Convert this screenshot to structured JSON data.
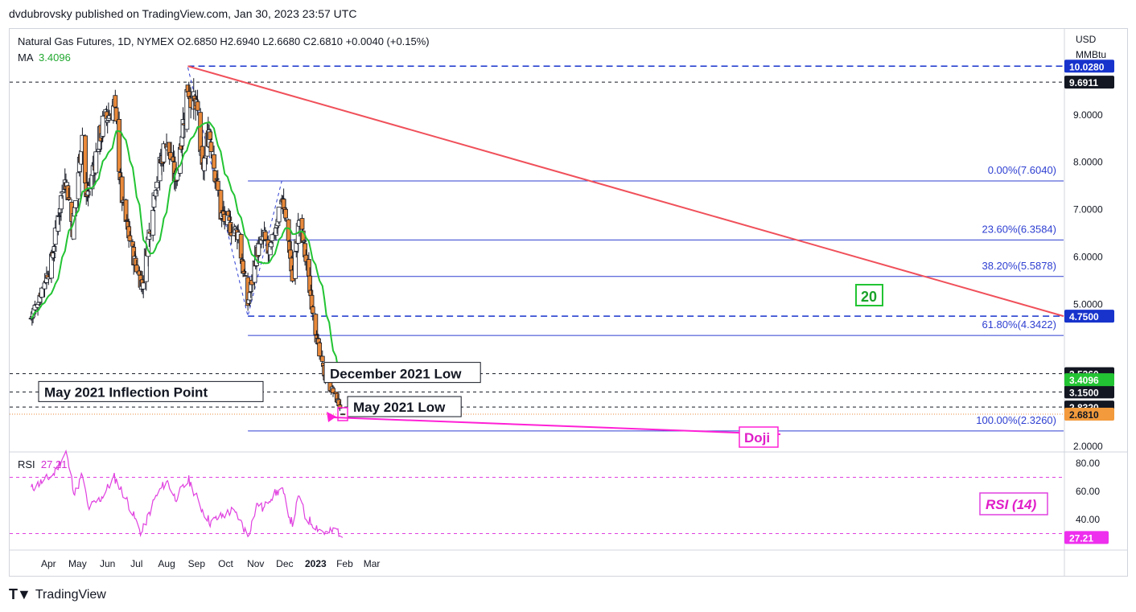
{
  "header": {
    "publisher_line": "dvdubrovsky published on TradingView.com, Jan 30, 2023 23:57 UTC"
  },
  "legend": {
    "symbol_line": "Natural Gas Futures, 1D, NYMEX  O2.6850  H2.6940  L2.6680  C2.6810  +0.0040 (+0.15%)",
    "ma_label": "MA",
    "ma_value": "3.4096",
    "rsi_label": "RSI",
    "rsi_value": "27.21"
  },
  "footer": {
    "brand": "TradingView"
  },
  "colors": {
    "candle_up": "#ffffff",
    "candle_down": "#e8893a",
    "candle_border": "#131722",
    "ma": "#22c433",
    "trendline": "#f0505a",
    "fib": "#2e3fd1",
    "dashed_blue": "#1733cc",
    "rsi": "#e040e0",
    "doji": "#ff20d6"
  },
  "chart_data": [
    {
      "type": "candlestick",
      "title": "Natural Gas Futures, 1D, NYMEX",
      "currency": "USD",
      "unit": "MMBtu",
      "y_axis_ticks": [
        "9.0000",
        "8.0000",
        "7.0000",
        "6.0000",
        "5.0000",
        "2.0000"
      ],
      "ylim": [
        2.0,
        10.0
      ],
      "x_axis_labels": [
        "Apr",
        "May",
        "Jun",
        "Jul",
        "Aug",
        "Sep",
        "Oct",
        "Nov",
        "Dec",
        "2023",
        "Feb",
        "Mar"
      ],
      "moving_average": {
        "name": "MA",
        "period_label": "20",
        "last": 3.4096
      },
      "anchors": [
        {
          "date": "Mar 14",
          "value": 4.7
        },
        {
          "date": "Apr 04",
          "value": 5.9
        },
        {
          "date": "Apr 18",
          "value": 7.8
        },
        {
          "date": "Apr 26",
          "value": 6.6
        },
        {
          "date": "May 06",
          "value": 8.6
        },
        {
          "date": "May 10",
          "value": 7.2
        },
        {
          "date": "May 27",
          "value": 8.8
        },
        {
          "date": "Jun 08",
          "value": 9.2
        },
        {
          "date": "Jun 17",
          "value": 7.0
        },
        {
          "date": "Jun 29",
          "value": 5.9
        },
        {
          "date": "Jul 07",
          "value": 5.4
        },
        {
          "date": "Jul 20",
          "value": 7.5
        },
        {
          "date": "Aug 01",
          "value": 8.5
        },
        {
          "date": "Aug 10",
          "value": 7.6
        },
        {
          "date": "Aug 23",
          "value": 9.6
        },
        {
          "date": "Sep 02",
          "value": 9.0
        },
        {
          "date": "Sep 07",
          "value": 7.8
        },
        {
          "date": "Sep 14",
          "value": 8.7
        },
        {
          "date": "Sep 26",
          "value": 6.9
        },
        {
          "date": "Oct 07",
          "value": 6.6
        },
        {
          "date": "Oct 14",
          "value": 6.5
        },
        {
          "date": "Oct 24",
          "value": 5.0
        },
        {
          "date": "Nov 02",
          "value": 6.1
        },
        {
          "date": "Nov 10",
          "value": 6.4
        },
        {
          "date": "Nov 15",
          "value": 6.0
        },
        {
          "date": "Nov 28",
          "value": 7.3
        },
        {
          "date": "Dec 06",
          "value": 6.2
        },
        {
          "date": "Dec 09",
          "value": 5.5
        },
        {
          "date": "Dec 16",
          "value": 6.8
        },
        {
          "date": "Dec 21",
          "value": 6.2
        },
        {
          "date": "Jan 06",
          "value": 3.9
        },
        {
          "date": "Jan 13",
          "value": 3.4
        },
        {
          "date": "Jan 24",
          "value": 3.0
        },
        {
          "date": "Jan 30",
          "value": 2.681
        }
      ],
      "horizontal_levels": [
        {
          "value": 9.6911,
          "label": "9.6911",
          "style": "dashed-black"
        },
        {
          "value": 10.028,
          "label": "10.0280",
          "style": "dashed-blue"
        },
        {
          "value": 4.75,
          "label": "4.7500",
          "style": "dashed-blue"
        },
        {
          "value": 3.536,
          "label": "3.5360",
          "style": "dashed-black",
          "annotation": "December 2021 Low"
        },
        {
          "value": 3.15,
          "label": "3.1500",
          "style": "dashed-black",
          "annotation": "May 2021 Inflection Point"
        },
        {
          "value": 2.832,
          "label": "2.8320",
          "style": "dashed-black",
          "annotation": "May 2021 Low"
        }
      ],
      "price_badges": [
        {
          "value": 3.4096,
          "label": "3.4096",
          "kind": "ma"
        },
        {
          "value": 2.681,
          "label": "2.6810",
          "kind": "last"
        }
      ],
      "fibonacci": [
        {
          "ratio": "0.00%",
          "value": 7.604,
          "label": "0.00%(7.6040)"
        },
        {
          "ratio": "23.60%",
          "value": 6.3584,
          "label": "23.60%(6.3584)"
        },
        {
          "ratio": "38.20%",
          "value": 5.5878,
          "label": "38.20%(5.5878)"
        },
        {
          "ratio": "61.80%",
          "value": 4.3422,
          "label": "61.80%(4.3422)"
        },
        {
          "ratio": "100.00%",
          "value": 2.326,
          "label": "100.00%(2.3260)"
        }
      ],
      "trendline": {
        "from": {
          "date": "Aug 23",
          "value": 10.028
        },
        "to": {
          "date": "Feb 20",
          "value": 4.75
        }
      },
      "annotations": [
        {
          "text": "20",
          "kind": "ma-period"
        },
        {
          "text": "Doji",
          "kind": "pattern",
          "date": "Jan 30",
          "value": 2.681
        }
      ]
    },
    {
      "type": "line",
      "title": "RSI",
      "indicator_label": "RSI (14)",
      "y_axis_ticks": [
        "80.00",
        "60.00",
        "40.00"
      ],
      "ylim": [
        20,
        92
      ],
      "levels": [
        70,
        30
      ],
      "last": 27.21,
      "anchors": [
        {
          "date": "Mar 14",
          "value": 62
        },
        {
          "date": "Apr 06",
          "value": 72
        },
        {
          "date": "Apr 19",
          "value": 88
        },
        {
          "date": "Apr 28",
          "value": 58
        },
        {
          "date": "May 06",
          "value": 72
        },
        {
          "date": "May 12",
          "value": 48
        },
        {
          "date": "May 25",
          "value": 55
        },
        {
          "date": "Jun 08",
          "value": 70
        },
        {
          "date": "Jun 20",
          "value": 55
        },
        {
          "date": "Jul 06",
          "value": 30
        },
        {
          "date": "Jul 20",
          "value": 55
        },
        {
          "date": "Aug 01",
          "value": 68
        },
        {
          "date": "Aug 10",
          "value": 55
        },
        {
          "date": "Aug 24",
          "value": 68
        },
        {
          "date": "Sep 06",
          "value": 48
        },
        {
          "date": "Sep 15",
          "value": 38
        },
        {
          "date": "Sep 26",
          "value": 42
        },
        {
          "date": "Oct 07",
          "value": 46
        },
        {
          "date": "Oct 14",
          "value": 42
        },
        {
          "date": "Oct 24",
          "value": 28
        },
        {
          "date": "Nov 03",
          "value": 52
        },
        {
          "date": "Nov 09",
          "value": 47
        },
        {
          "date": "Nov 15",
          "value": 55
        },
        {
          "date": "Nov 28",
          "value": 62
        },
        {
          "date": "Dec 07",
          "value": 40
        },
        {
          "date": "Dec 09",
          "value": 37
        },
        {
          "date": "Dec 16",
          "value": 58
        },
        {
          "date": "Dec 22",
          "value": 42
        },
        {
          "date": "Jan 06",
          "value": 33
        },
        {
          "date": "Jan 13",
          "value": 30
        },
        {
          "date": "Jan 24",
          "value": 33
        },
        {
          "date": "Jan 30",
          "value": 27.21
        }
      ]
    }
  ]
}
